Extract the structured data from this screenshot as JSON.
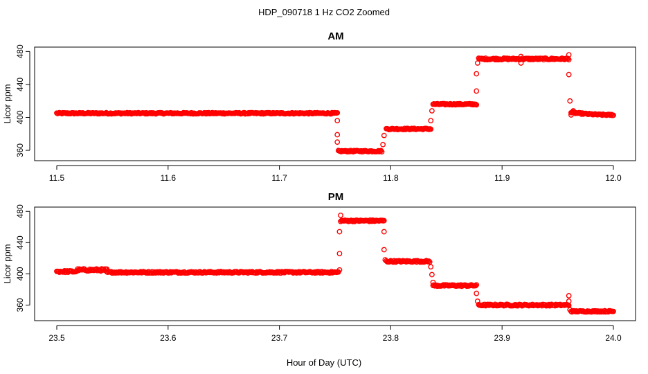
{
  "title": "HDP_090718  1 Hz CO2 Zoomed",
  "xlabel": "Hour of Day (UTC)",
  "chart_data": [
    {
      "type": "scatter",
      "title": "AM",
      "ylabel": "Licor ppm",
      "xlim": [
        11.5,
        12.0
      ],
      "ylim": [
        355,
        482
      ],
      "x_ticks": [
        11.5,
        11.6,
        11.7,
        11.8,
        11.9,
        12.0
      ],
      "x_tick_labels": [
        "11.5",
        "11.6",
        "11.7",
        "11.8",
        "11.9",
        "12.0"
      ],
      "y_ticks": [
        360,
        400,
        440,
        480
      ],
      "y_tick_labels": [
        "360",
        "400",
        "440",
        "480"
      ],
      "grid": false,
      "color": "#ff0000",
      "marker": "open-circle",
      "segments": [
        {
          "x_start": 11.5,
          "x_end": 11.752,
          "y": 405,
          "noise": 0.8
        },
        {
          "x_start": 11.753,
          "x_end": 11.792,
          "y": 359,
          "noise": 0.8
        },
        {
          "x_start": 11.796,
          "x_end": 11.836,
          "y": 386,
          "noise": 0.8
        },
        {
          "x_start": 11.838,
          "x_end": 11.877,
          "y": 416,
          "noise": 0.8
        },
        {
          "x_start": 11.879,
          "x_end": 11.96,
          "y": 471,
          "noise": 1.0
        },
        {
          "x_start": 11.962,
          "x_end": 12.0,
          "y": 406,
          "y_end": 403,
          "noise": 0.8
        }
      ],
      "points": [
        {
          "x": 11.752,
          "y": 396
        },
        {
          "x": 11.752,
          "y": 379
        },
        {
          "x": 11.752,
          "y": 370
        },
        {
          "x": 11.793,
          "y": 367
        },
        {
          "x": 11.794,
          "y": 378
        },
        {
          "x": 11.836,
          "y": 396
        },
        {
          "x": 11.837,
          "y": 408
        },
        {
          "x": 11.877,
          "y": 432
        },
        {
          "x": 11.877,
          "y": 453
        },
        {
          "x": 11.878,
          "y": 466
        },
        {
          "x": 11.917,
          "y": 466
        },
        {
          "x": 11.917,
          "y": 474
        },
        {
          "x": 11.96,
          "y": 476
        },
        {
          "x": 11.96,
          "y": 452
        },
        {
          "x": 11.961,
          "y": 420
        },
        {
          "x": 11.962,
          "y": 403
        },
        {
          "x": 11.964,
          "y": 408
        }
      ]
    },
    {
      "type": "scatter",
      "title": "PM",
      "ylabel": "Licor ppm",
      "xlim": [
        23.5,
        24.0
      ],
      "ylim": [
        348,
        482
      ],
      "x_ticks": [
        23.5,
        23.6,
        23.7,
        23.8,
        23.9,
        24.0
      ],
      "x_tick_labels": [
        "23.5",
        "23.6",
        "23.7",
        "23.8",
        "23.9",
        "24.0"
      ],
      "y_ticks": [
        360,
        400,
        440,
        480
      ],
      "y_tick_labels": [
        "360",
        "400",
        "440",
        "480"
      ],
      "grid": false,
      "color": "#ff0000",
      "marker": "open-circle",
      "segments": [
        {
          "x_start": 23.5,
          "x_end": 23.518,
          "y": 403,
          "noise": 1.2
        },
        {
          "x_start": 23.518,
          "x_end": 23.545,
          "y": 405,
          "noise": 1.5
        },
        {
          "x_start": 23.545,
          "x_end": 23.753,
          "y": 402,
          "noise": 1.0
        },
        {
          "x_start": 23.755,
          "x_end": 23.794,
          "y": 468,
          "noise": 1.0
        },
        {
          "x_start": 23.796,
          "x_end": 23.835,
          "y": 416,
          "noise": 1.0
        },
        {
          "x_start": 23.838,
          "x_end": 23.877,
          "y": 385,
          "noise": 1.0
        },
        {
          "x_start": 23.879,
          "x_end": 23.96,
          "y": 360,
          "noise": 1.0
        },
        {
          "x_start": 23.962,
          "x_end": 24.0,
          "y": 352,
          "noise": 0.8
        }
      ],
      "points": [
        {
          "x": 23.754,
          "y": 405
        },
        {
          "x": 23.754,
          "y": 426
        },
        {
          "x": 23.754,
          "y": 454
        },
        {
          "x": 23.755,
          "y": 475
        },
        {
          "x": 23.794,
          "y": 454
        },
        {
          "x": 23.794,
          "y": 431
        },
        {
          "x": 23.795,
          "y": 418
        },
        {
          "x": 23.836,
          "y": 409
        },
        {
          "x": 23.837,
          "y": 399
        },
        {
          "x": 23.838,
          "y": 389
        },
        {
          "x": 23.877,
          "y": 375
        },
        {
          "x": 23.878,
          "y": 365
        },
        {
          "x": 23.96,
          "y": 372
        },
        {
          "x": 23.96,
          "y": 365
        },
        {
          "x": 23.961,
          "y": 354
        }
      ]
    }
  ]
}
